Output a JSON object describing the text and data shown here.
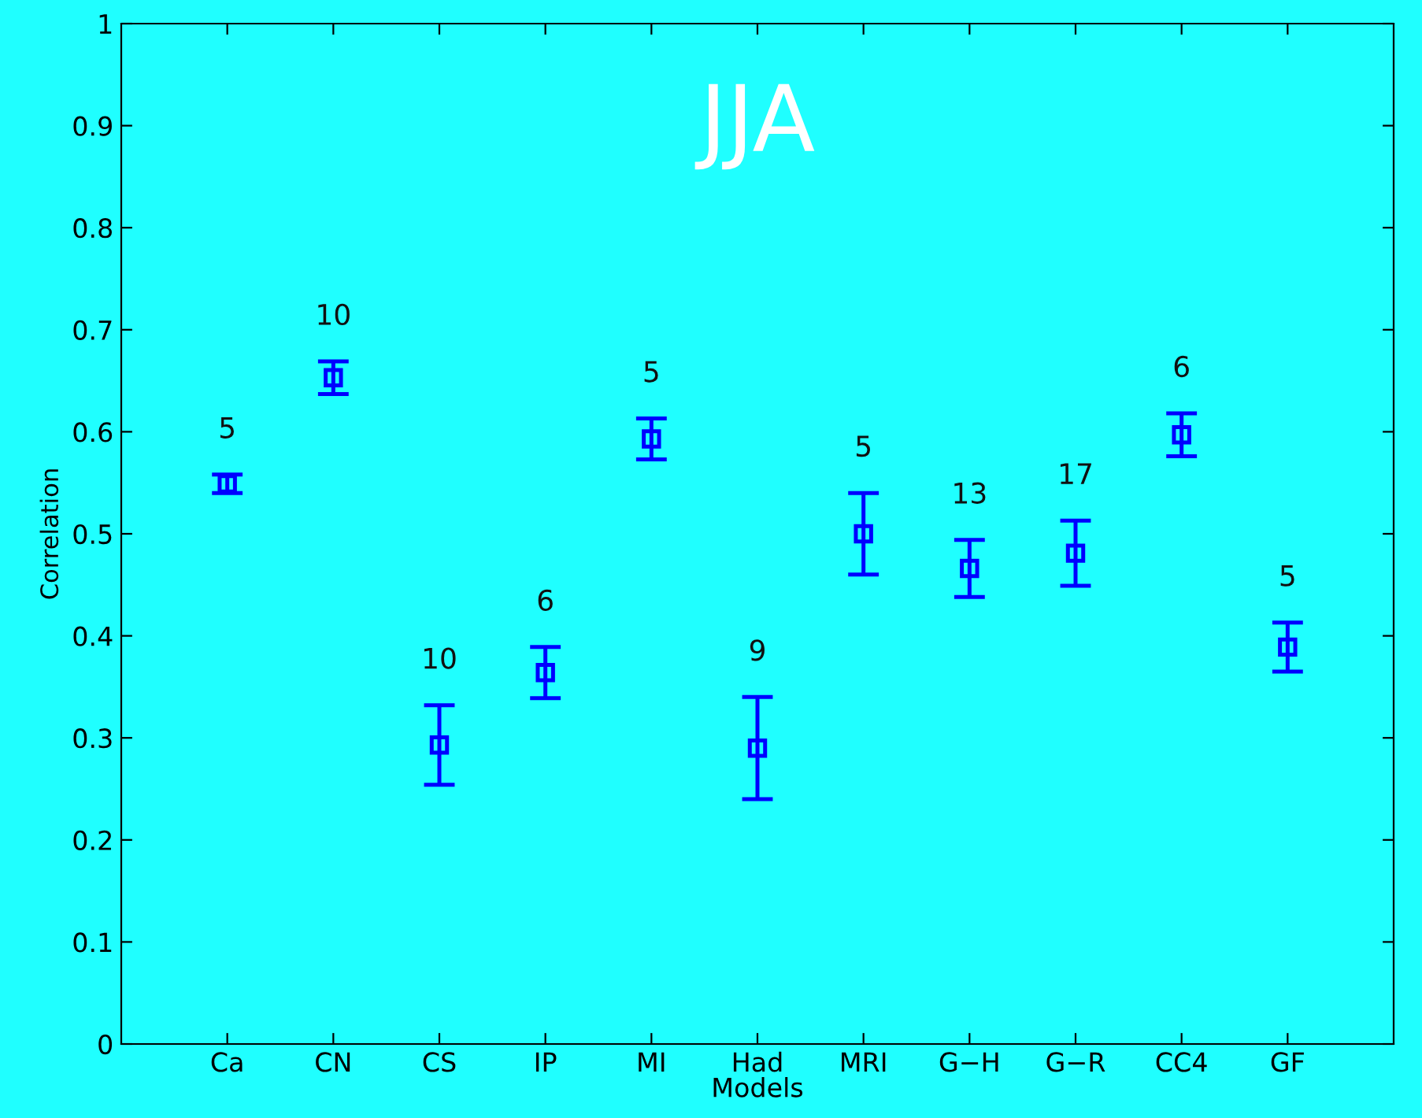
{
  "chart_data": {
    "type": "scatter",
    "xlabel": "Models",
    "ylabel": "Correlation",
    "categories": [
      "Ca",
      "CN",
      "CS",
      "IP",
      "MI",
      "Had",
      "MRI",
      "G−H",
      "G−R",
      "CC4",
      "GF"
    ],
    "series": [
      {
        "color": "#0000ff",
        "values": [
          0.549,
          0.653,
          0.293,
          0.364,
          0.593,
          0.29,
          0.5,
          0.466,
          0.481,
          0.597,
          0.389
        ],
        "errors": [
          0.009,
          0.016,
          0.039,
          0.025,
          0.02,
          0.05,
          0.04,
          0.028,
          0.032,
          0.021,
          0.024
        ]
      }
    ],
    "marker": "square",
    "ylim": [
      0,
      1
    ],
    "yticks": [
      0,
      0.1,
      0.2,
      0.3,
      0.4,
      0.5,
      0.6,
      0.7,
      0.8,
      0.9,
      1
    ],
    "grid": false,
    "legend": false,
    "annotations": [
      "JJA",
      "5",
      "10",
      "10",
      "6",
      "5",
      "9",
      "5",
      "13",
      "17",
      "6",
      "5"
    ]
  }
}
